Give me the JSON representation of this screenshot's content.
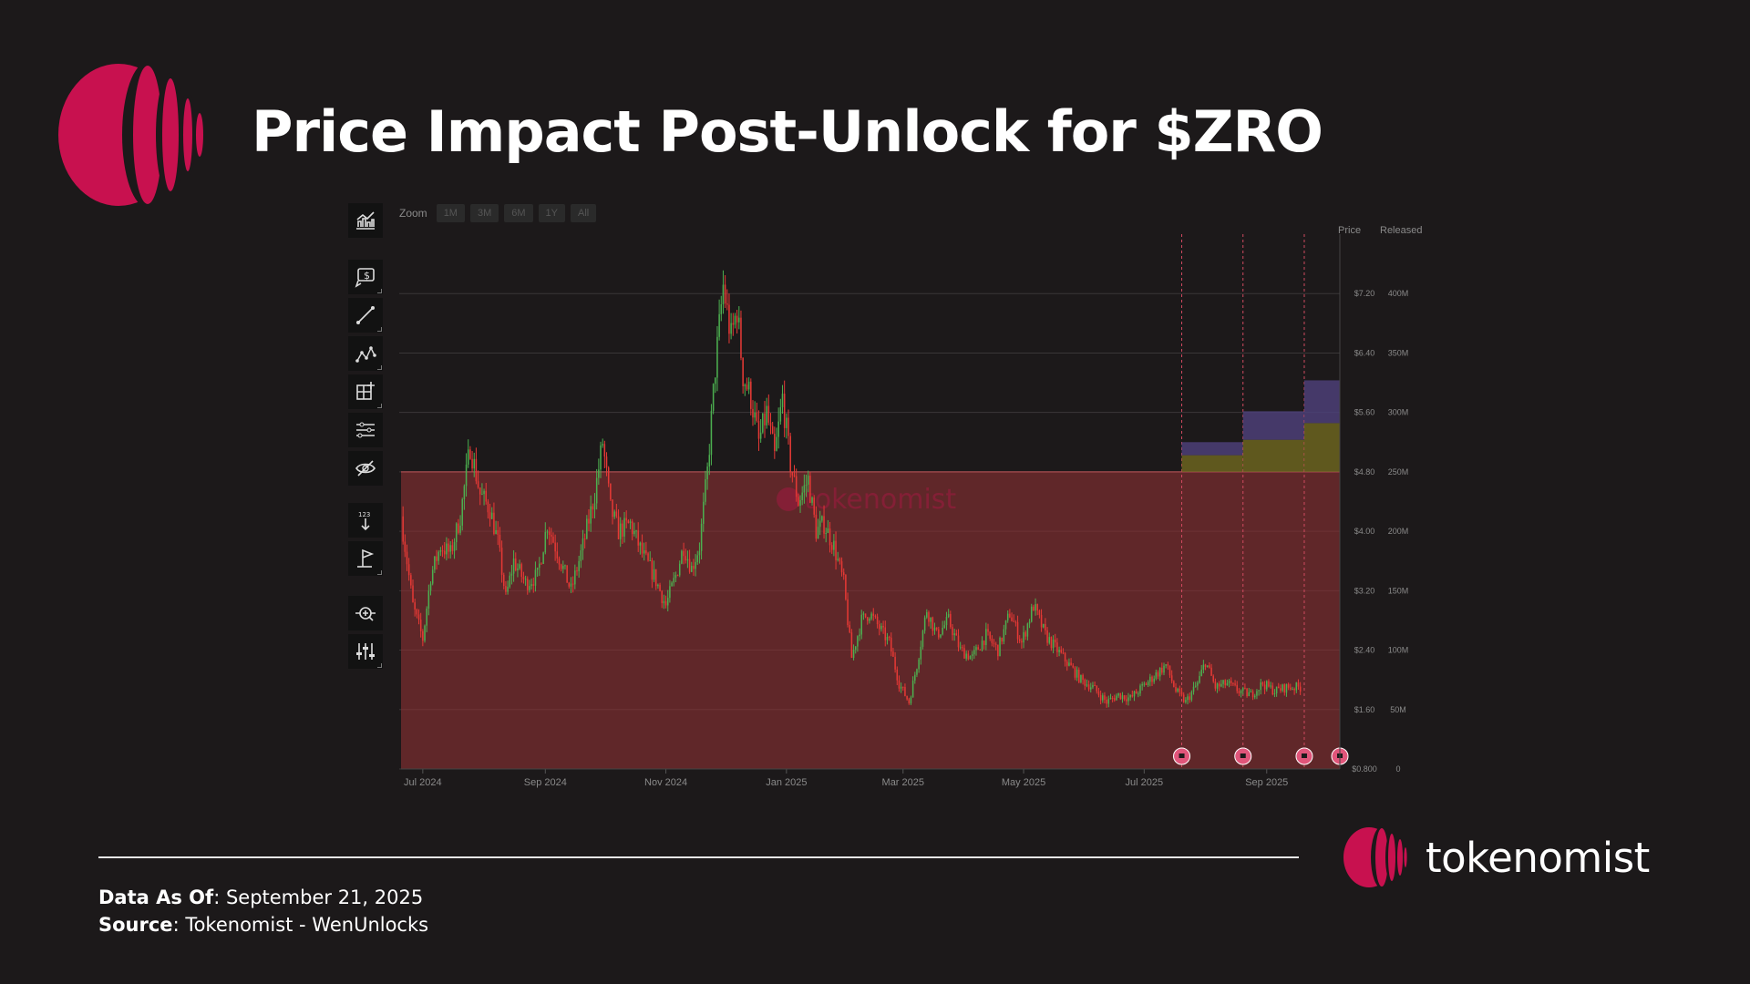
{
  "title": "Price Impact Post-Unlock for $ZRO",
  "toolbar": {
    "zoom_label": "Zoom",
    "zoom_options": [
      "1M",
      "3M",
      "6M",
      "1Y",
      "All"
    ],
    "tools": [
      "chart-type-icon",
      "price-annotation-icon",
      "line-tool-icon",
      "pattern-tool-icon",
      "measure-tool-icon",
      "indicator-lines-icon",
      "hide-icon",
      "number-label-icon",
      "flag-icon",
      "zoom-icon",
      "adjust-icon"
    ]
  },
  "footer": {
    "data_as_of_label": "Data As Of",
    "data_as_of_value": ": September 21, 2025",
    "source_label": "Source",
    "source_value": ": Tokenomist - WenUnlocks"
  },
  "brand": {
    "name": "tokenomist"
  },
  "colors": {
    "accent": "#c8114f",
    "up": "#4caf50",
    "down": "#e53935",
    "shade": "#8b3034",
    "unlock_olive": "#6b6420",
    "unlock_purple": "#4c3f78"
  },
  "chart_data": {
    "type": "candlestick",
    "watermark": "tokenomist",
    "x_ticks": [
      "Jul 2024",
      "Sep 2024",
      "Nov 2024",
      "Jan 2025",
      "Mar 2025",
      "May 2025",
      "Jul 2025",
      "Sep 2025"
    ],
    "x_range": [
      "2024-06-20",
      "2025-10-08"
    ],
    "price_axis": {
      "label": "Price",
      "ticks": [
        "$0.800",
        "$1.60",
        "$2.40",
        "$3.20",
        "$4.00",
        "$4.80",
        "$5.60",
        "$6.40",
        "$7.20"
      ],
      "range": [
        0.8,
        8.0
      ]
    },
    "released_axis": {
      "label": "Released",
      "ticks": [
        "0",
        "50M",
        "100M",
        "150M",
        "200M",
        "250M",
        "300M",
        "350M",
        "400M"
      ],
      "range": [
        0,
        450
      ]
    },
    "price_path": [
      [
        "2024-06-20",
        4.2
      ],
      [
        "2024-06-26",
        3.0
      ],
      [
        "2024-07-01",
        2.55
      ],
      [
        "2024-07-05",
        3.4
      ],
      [
        "2024-07-10",
        3.8
      ],
      [
        "2024-07-15",
        3.7
      ],
      [
        "2024-07-20",
        4.2
      ],
      [
        "2024-07-25",
        5.15
      ],
      [
        "2024-07-30",
        4.5
      ],
      [
        "2024-08-04",
        4.3
      ],
      [
        "2024-08-08",
        3.85
      ],
      [
        "2024-08-12",
        3.1
      ],
      [
        "2024-08-16",
        3.6
      ],
      [
        "2024-08-22",
        3.3
      ],
      [
        "2024-08-28",
        3.4
      ],
      [
        "2024-09-02",
        4.1
      ],
      [
        "2024-09-06",
        3.8
      ],
      [
        "2024-09-10",
        3.5
      ],
      [
        "2024-09-14",
        3.2
      ],
      [
        "2024-09-20",
        3.8
      ],
      [
        "2024-09-26",
        4.5
      ],
      [
        "2024-09-30",
        5.2
      ],
      [
        "2024-10-04",
        4.3
      ],
      [
        "2024-10-08",
        4.0
      ],
      [
        "2024-10-14",
        4.1
      ],
      [
        "2024-10-20",
        3.7
      ],
      [
        "2024-10-26",
        3.4
      ],
      [
        "2024-11-01",
        3.0
      ],
      [
        "2024-11-06",
        3.4
      ],
      [
        "2024-11-10",
        3.8
      ],
      [
        "2024-11-14",
        3.5
      ],
      [
        "2024-11-18",
        3.8
      ],
      [
        "2024-11-22",
        4.8
      ],
      [
        "2024-11-26",
        6.2
      ],
      [
        "2024-11-30",
        7.3
      ],
      [
        "2024-12-04",
        6.6
      ],
      [
        "2024-12-07",
        7.0
      ],
      [
        "2024-12-10",
        6.1
      ],
      [
        "2024-12-14",
        5.8
      ],
      [
        "2024-12-18",
        5.2
      ],
      [
        "2024-12-22",
        5.6
      ],
      [
        "2024-12-26",
        5.0
      ],
      [
        "2024-12-30",
        5.8
      ],
      [
        "2025-01-03",
        4.9
      ],
      [
        "2025-01-07",
        4.4
      ],
      [
        "2025-01-12",
        4.7
      ],
      [
        "2025-01-16",
        4.0
      ],
      [
        "2025-01-20",
        4.1
      ],
      [
        "2025-01-25",
        3.8
      ],
      [
        "2025-01-30",
        3.3
      ],
      [
        "2025-02-03",
        2.3
      ],
      [
        "2025-02-08",
        2.8
      ],
      [
        "2025-02-12",
        2.9
      ],
      [
        "2025-02-17",
        2.7
      ],
      [
        "2025-02-22",
        2.5
      ],
      [
        "2025-02-27",
        1.95
      ],
      [
        "2025-03-04",
        1.7
      ],
      [
        "2025-03-08",
        2.2
      ],
      [
        "2025-03-13",
        2.95
      ],
      [
        "2025-03-18",
        2.6
      ],
      [
        "2025-03-24",
        2.8
      ],
      [
        "2025-03-30",
        2.4
      ],
      [
        "2025-04-05",
        2.3
      ],
      [
        "2025-04-12",
        2.6
      ],
      [
        "2025-04-18",
        2.4
      ],
      [
        "2025-04-24",
        2.9
      ],
      [
        "2025-04-30",
        2.5
      ],
      [
        "2025-05-06",
        3.0
      ],
      [
        "2025-05-12",
        2.6
      ],
      [
        "2025-05-18",
        2.4
      ],
      [
        "2025-05-24",
        2.2
      ],
      [
        "2025-05-30",
        2.0
      ],
      [
        "2025-06-05",
        1.9
      ],
      [
        "2025-06-12",
        1.7
      ],
      [
        "2025-06-18",
        1.8
      ],
      [
        "2025-06-24",
        1.75
      ],
      [
        "2025-06-30",
        1.9
      ],
      [
        "2025-07-06",
        2.05
      ],
      [
        "2025-07-12",
        2.2
      ],
      [
        "2025-07-17",
        1.85
      ],
      [
        "2025-07-22",
        1.7
      ],
      [
        "2025-07-28",
        1.95
      ],
      [
        "2025-08-01",
        2.25
      ],
      [
        "2025-08-06",
        1.9
      ],
      [
        "2025-08-12",
        1.95
      ],
      [
        "2025-08-18",
        1.85
      ],
      [
        "2025-08-24",
        1.8
      ],
      [
        "2025-08-30",
        1.95
      ],
      [
        "2025-09-05",
        1.85
      ],
      [
        "2025-09-11",
        1.9
      ],
      [
        "2025-09-18",
        1.9
      ]
    ],
    "shaded_region": {
      "from": "2024-06-20",
      "to": "2025-10-08",
      "price_top": 4.8
    },
    "unlock_events": [
      {
        "date": "2025-07-20",
        "bars": [
          {
            "from": 250,
            "to": 264
          },
          {
            "from": 264,
            "to": 275
          }
        ]
      },
      {
        "date": "2025-08-20",
        "bars": [
          {
            "from": 250,
            "to": 277
          },
          {
            "from": 277,
            "to": 301
          }
        ]
      },
      {
        "date": "2025-09-20",
        "bars": [
          {
            "from": 250,
            "to": 291
          },
          {
            "from": 291,
            "to": 327
          }
        ]
      },
      {
        "date": "2025-10-08",
        "bars": []
      }
    ]
  }
}
